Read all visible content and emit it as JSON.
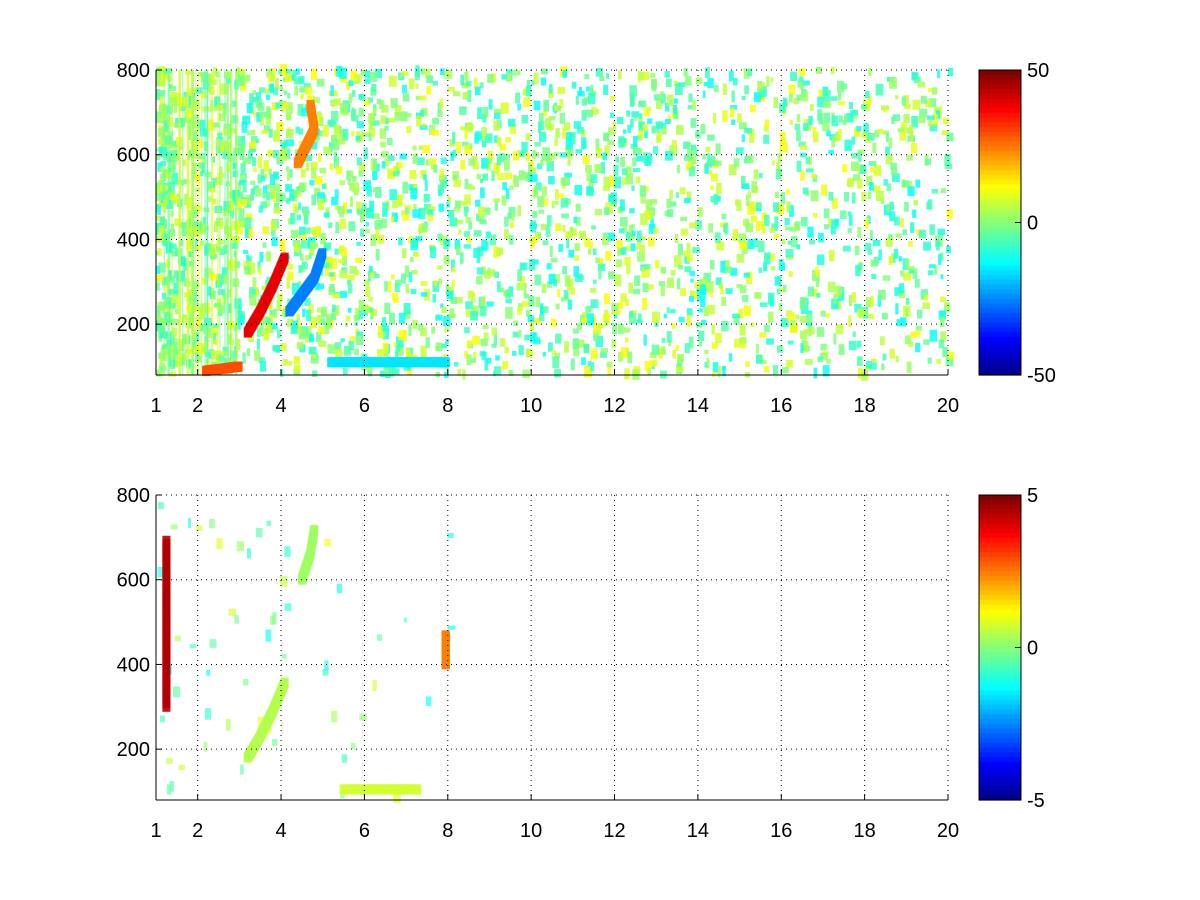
{
  "chart_data": [
    {
      "type": "heatmap",
      "title": "",
      "xlabel": "",
      "ylabel": "",
      "xlim": [
        1,
        20
      ],
      "ylim": [
        80,
        800
      ],
      "x_ticks": [
        "1",
        "2",
        "4",
        "6",
        "8",
        "10",
        "12",
        "14",
        "16",
        "18",
        "20"
      ],
      "x_tick_values": [
        1,
        2,
        4,
        6,
        8,
        10,
        12,
        14,
        16,
        18,
        20
      ],
      "y_ticks": [
        "200",
        "400",
        "600",
        "800"
      ],
      "y_tick_values": [
        200,
        400,
        600,
        800
      ],
      "grid": true,
      "colormap": "jet",
      "colorbar": {
        "min": -50,
        "max": 50,
        "ticks": [
          "50",
          "0",
          "-50"
        ],
        "tick_values": [
          50,
          0,
          -50
        ]
      },
      "features": [
        {
          "name": "",
          "points": [
            [
              3.2,
              180
            ],
            [
              3.5,
              230
            ],
            [
              3.8,
              290
            ],
            [
              4.1,
              360
            ]
          ],
          "value": 40
        },
        {
          "name": "",
          "points": [
            [
              4.2,
              230
            ],
            [
              4.5,
              270
            ],
            [
              4.8,
              310
            ],
            [
              5.0,
              370
            ]
          ],
          "value": -25
        },
        {
          "name": "",
          "points": [
            [
              4.4,
              580
            ],
            [
              4.6,
              620
            ],
            [
              4.8,
              660
            ],
            [
              4.7,
              720
            ]
          ],
          "value": 25
        },
        {
          "name": "",
          "points": [
            [
              5.2,
              110
            ],
            [
              6.0,
              110
            ],
            [
              7.0,
              110
            ],
            [
              8.0,
              110
            ]
          ],
          "value": -15
        },
        {
          "name": "",
          "points": [
            [
              2.2,
              90
            ],
            [
              2.6,
              95
            ],
            [
              3.0,
              100
            ]
          ],
          "value": 30
        }
      ]
    },
    {
      "type": "heatmap",
      "title": "",
      "xlabel": "",
      "ylabel": "",
      "xlim": [
        1,
        20
      ],
      "ylim": [
        80,
        800
      ],
      "x_ticks": [
        "1",
        "2",
        "4",
        "6",
        "8",
        "10",
        "12",
        "14",
        "16",
        "18",
        "20"
      ],
      "x_tick_values": [
        1,
        2,
        4,
        6,
        8,
        10,
        12,
        14,
        16,
        18,
        20
      ],
      "y_ticks": [
        "200",
        "400",
        "600",
        "800"
      ],
      "y_tick_values": [
        200,
        400,
        600,
        800
      ],
      "grid": true,
      "colormap": "jet",
      "colorbar": {
        "min": -5,
        "max": 5,
        "ticks": [
          "5",
          "0",
          "-5"
        ],
        "tick_values": [
          5,
          0,
          -5
        ]
      },
      "features": [
        {
          "name": "",
          "points": [
            [
              3.2,
              180
            ],
            [
              3.5,
              230
            ],
            [
              3.8,
              290
            ],
            [
              4.1,
              360
            ]
          ],
          "value": 0.5
        },
        {
          "name": "",
          "points": [
            [
              4.5,
              600
            ],
            [
              4.7,
              660
            ],
            [
              4.8,
              720
            ]
          ],
          "value": 0.3
        },
        {
          "name": "",
          "points": [
            [
              5.5,
              105
            ],
            [
              6.5,
              105
            ],
            [
              7.3,
              105
            ]
          ],
          "value": 0.8
        },
        {
          "name": "",
          "points": [
            [
              1.25,
              300
            ],
            [
              1.25,
              500
            ],
            [
              1.25,
              700
            ]
          ],
          "value": 4.5
        },
        {
          "name": "",
          "points": [
            [
              7.95,
              400
            ],
            [
              7.95,
              440
            ],
            [
              7.95,
              470
            ]
          ],
          "value": 2.5
        }
      ]
    }
  ]
}
